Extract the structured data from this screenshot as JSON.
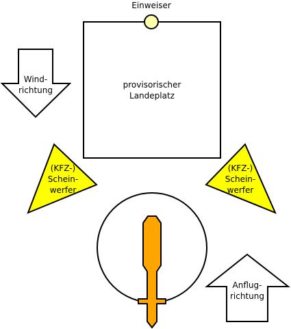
{
  "labels": {
    "marshaller": "Einweiser",
    "landing_site_line1": "provisorischer",
    "landing_site_line2": "Landeplatz",
    "wind_line1": "Wind-",
    "wind_line2": "richtung",
    "light_left_line1": "(KFZ-)",
    "light_left_line2": "Schein-",
    "light_left_line3": "werfer",
    "light_right_line1": "(KFZ-)",
    "light_right_line2": "Schein-",
    "light_right_line3": "werfer",
    "approach_line1": "Anflug-",
    "approach_line2": "richtung"
  },
  "colors": {
    "marshaller_fill": "#ffffaa",
    "spotlight_fill": "#ffff00",
    "helicopter_fill": "#ffa500",
    "stroke": "#000000",
    "background": "#ffffff"
  }
}
